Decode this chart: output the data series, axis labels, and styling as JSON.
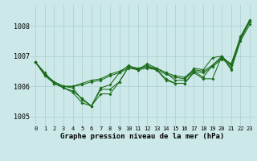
{
  "bg_color": "#cce8e8",
  "grid_color": "#aacece",
  "line_color": "#1a6b1a",
  "xlabel": "Graphe pression niveau de la mer (hPa)",
  "ylim": [
    1004.7,
    1008.7
  ],
  "yticks": [
    1005,
    1006,
    1007,
    1008
  ],
  "series": [
    [
      1006.8,
      1006.45,
      1006.1,
      1005.95,
      1005.8,
      1005.45,
      1005.35,
      1005.75,
      1005.75,
      1006.15,
      1006.65,
      1006.55,
      1006.7,
      1006.55,
      1006.2,
      1006.1,
      1006.1,
      1006.45,
      1006.25,
      1006.25,
      1007.0,
      1006.55,
      1007.5,
      1008.05
    ],
    [
      1006.8,
      1006.4,
      1006.15,
      1006.0,
      1005.95,
      1005.55,
      1005.35,
      1005.9,
      1005.9,
      1006.15,
      1006.65,
      1006.6,
      1006.65,
      1006.55,
      1006.25,
      1006.1,
      1006.1,
      1006.5,
      1006.3,
      1006.7,
      1007.0,
      1006.6,
      1007.6,
      1008.15
    ],
    [
      1006.8,
      1006.4,
      1006.15,
      1006.0,
      1006.0,
      1006.1,
      1006.2,
      1006.25,
      1006.4,
      1006.5,
      1006.65,
      1006.6,
      1006.65,
      1006.6,
      1006.45,
      1006.35,
      1006.3,
      1006.55,
      1006.5,
      1006.7,
      1006.95,
      1006.75,
      1007.6,
      1008.2
    ],
    [
      1006.8,
      1006.4,
      1006.1,
      1005.95,
      1005.85,
      1005.6,
      1005.35,
      1005.95,
      1006.05,
      1006.45,
      1006.7,
      1006.55,
      1006.75,
      1006.6,
      1006.45,
      1006.2,
      1006.2,
      1006.6,
      1006.55,
      1006.95,
      1007.0,
      1006.7,
      1007.65,
      1008.2
    ],
    [
      1006.8,
      1006.35,
      1006.1,
      1006.0,
      1006.0,
      1006.05,
      1006.15,
      1006.2,
      1006.35,
      1006.45,
      1006.6,
      1006.55,
      1006.6,
      1006.55,
      1006.4,
      1006.3,
      1006.25,
      1006.5,
      1006.45,
      1006.65,
      1006.9,
      1006.7,
      1007.55,
      1008.15
    ]
  ]
}
